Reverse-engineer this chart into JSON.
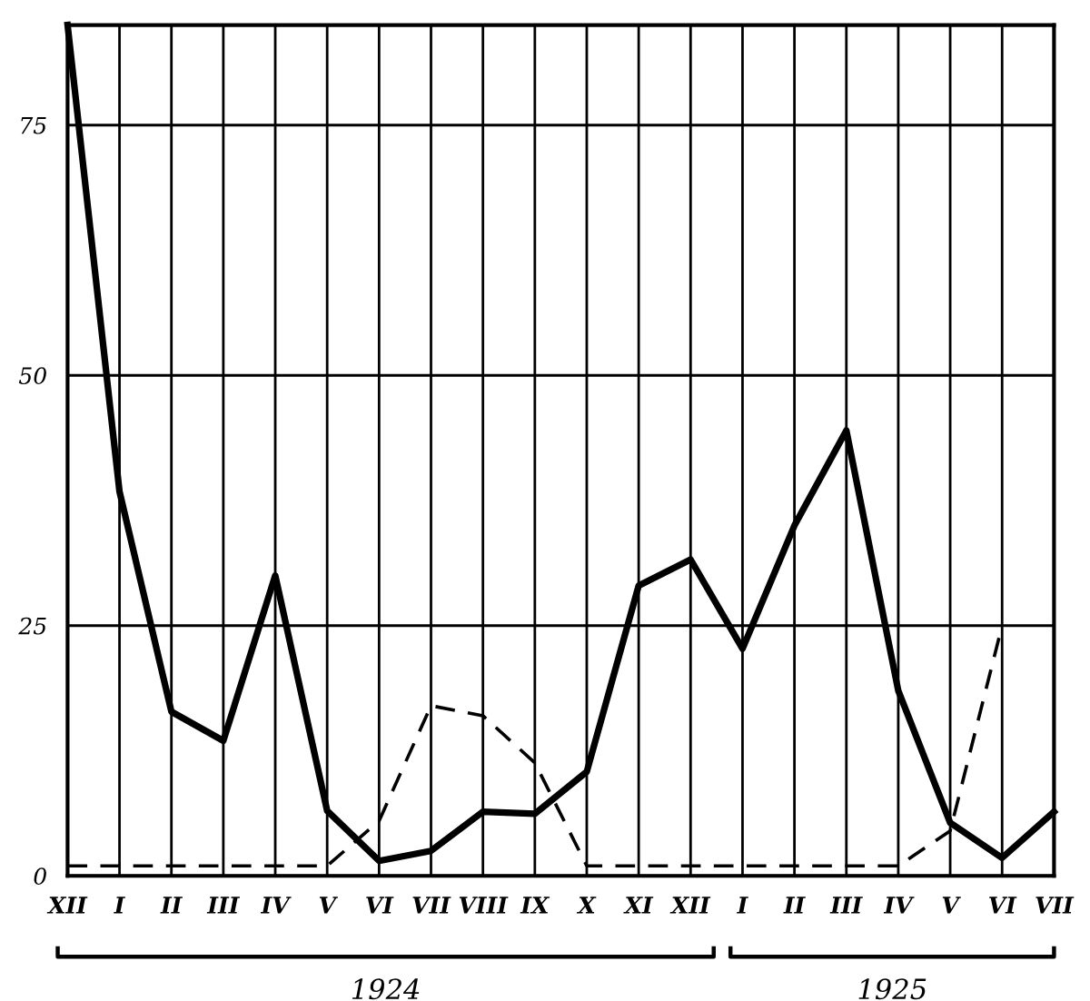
{
  "chart_data": {
    "type": "line",
    "categories": [
      "XII",
      "I",
      "II",
      "III",
      "IV",
      "V",
      "VI",
      "VII",
      "VIII",
      "IX",
      "X",
      "XI",
      "XII",
      "I",
      "II",
      "III",
      "IV",
      "V",
      "VI",
      "VII"
    ],
    "series": [
      {
        "color": "#000000",
        "line_style": "solid",
        "values": [
          85,
          38.4,
          16.4,
          13.5,
          30,
          6.5,
          1.5,
          2.5,
          6.4,
          6.2,
          10.4,
          29,
          31.6,
          22.7,
          35,
          44.5,
          18.5,
          5.3,
          1.8,
          6.4
        ]
      },
      {
        "color": "#000000",
        "line_style": "dashed",
        "values": [
          1,
          1,
          1,
          1,
          1,
          1,
          5.5,
          17,
          16,
          11.3,
          1,
          1,
          1,
          1,
          1,
          1,
          1,
          4.5,
          25,
          null
        ]
      }
    ],
    "ylim": [
      0,
      85
    ],
    "yticks": [
      0,
      25,
      50,
      75
    ],
    "grid": true,
    "legend": false,
    "marker": "none",
    "annotations": [
      "1924",
      "1925"
    ]
  }
}
